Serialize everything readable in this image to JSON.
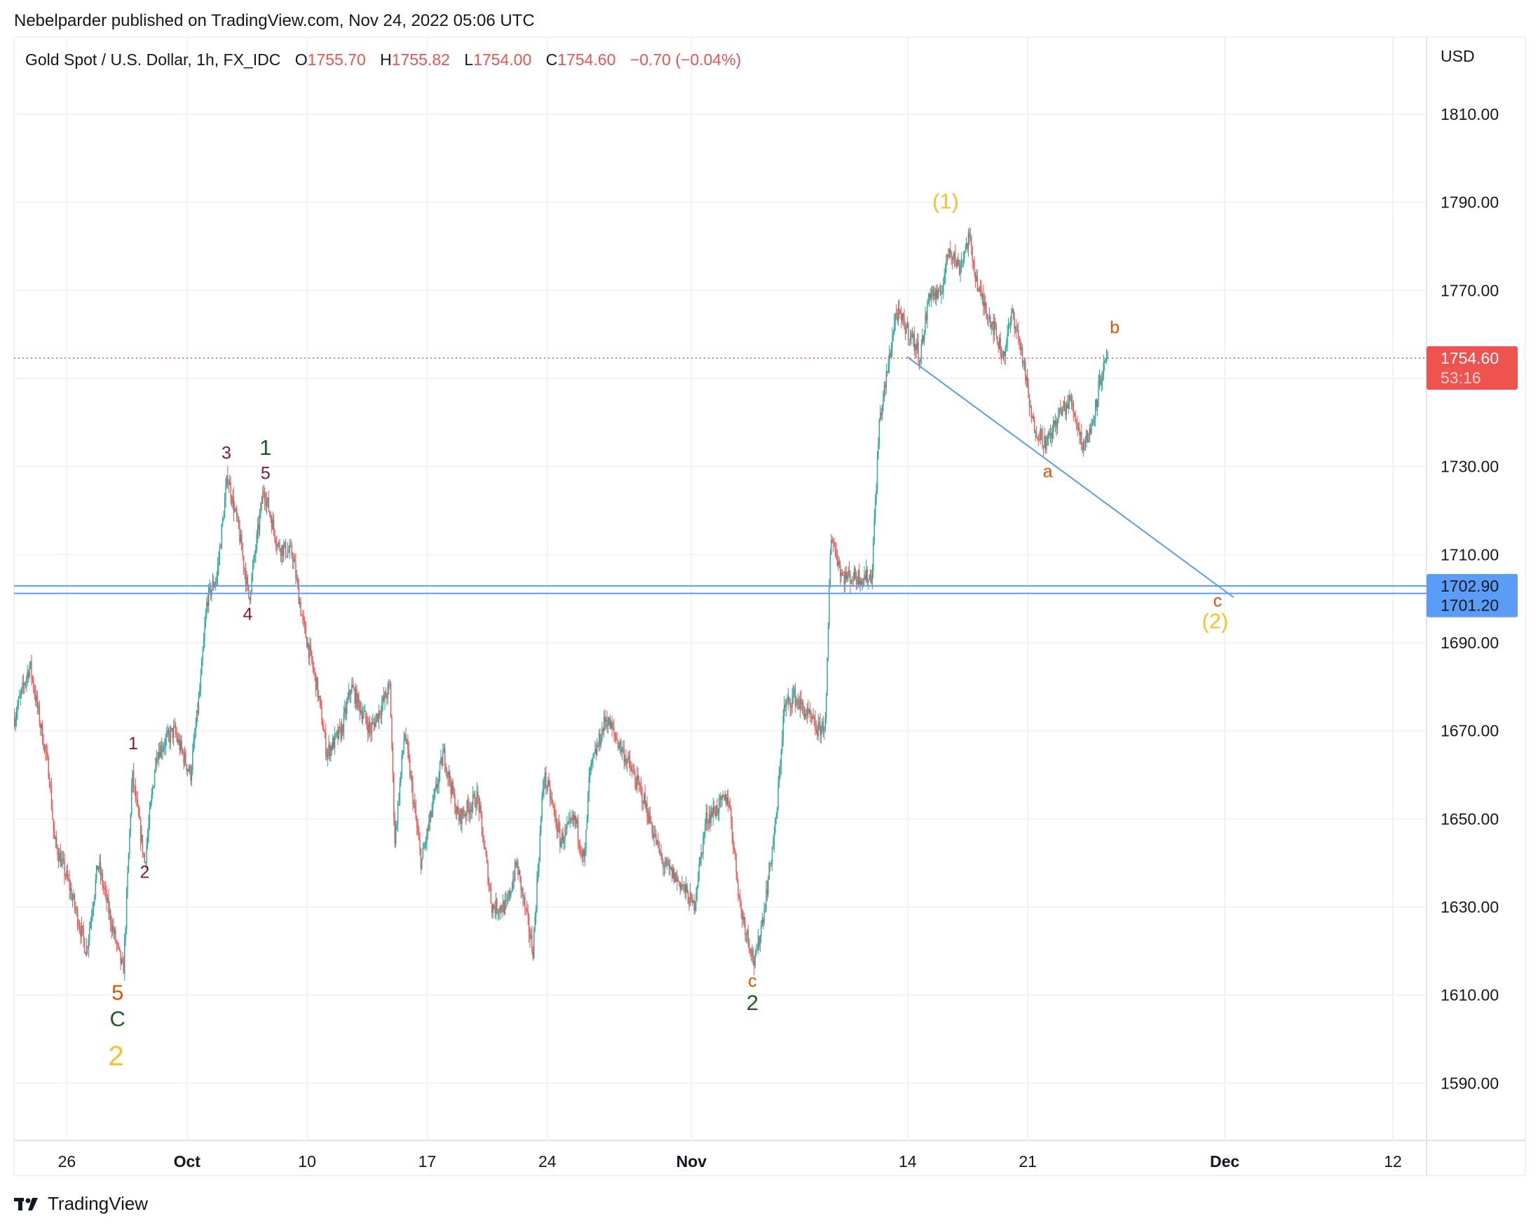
{
  "publish_line": "Nebelparder published on TradingView.com, Nov 24, 2022 05:06 UTC",
  "legend": {
    "symbol": "Gold Spot / U.S. Dollar, 1h, FX_IDC",
    "o_label": "O",
    "o": "1755.70",
    "h_label": "H",
    "h": "1755.82",
    "l_label": "L",
    "l": "1754.00",
    "c_label": "C",
    "c": "1754.60",
    "change": "−0.70 (−0.04%)"
  },
  "footer": {
    "brand": "TradingView",
    "logo_icon": "tradingview-logo-icon"
  },
  "colors": {
    "up": "#26a69a",
    "down": "#ef5350",
    "line": "#5b9cf6",
    "grid": "#f0f3fa"
  },
  "chart_data": {
    "type": "candlestick",
    "currency_label": "USD",
    "x_unit": "trading days since Sep 26 2022",
    "xlim": [
      -2.2,
      56.6
    ],
    "ylim": [
      1577,
      1827.5
    ],
    "y_ticks": [
      "1810.00",
      "1790.00",
      "1770.00",
      "1730.00",
      "1710.00",
      "1690.00",
      "1670.00",
      "1650.00",
      "1630.00",
      "1610.00",
      "1590.00"
    ],
    "x_ticks": [
      {
        "t": 0,
        "label": "26"
      },
      {
        "t": 5,
        "label": "Oct"
      },
      {
        "t": 10,
        "label": "10"
      },
      {
        "t": 15,
        "label": "17"
      },
      {
        "t": 20,
        "label": "24"
      },
      {
        "t": 26,
        "label": "Nov"
      },
      {
        "t": 35,
        "label": "14"
      },
      {
        "t": 40,
        "label": "21"
      },
      {
        "t": 48.2,
        "label": "Dec"
      },
      {
        "t": 55.2,
        "label": "12"
      }
    ],
    "price_path": [
      [
        -2.18,
        1673
      ],
      [
        -1.54,
        1685
      ],
      [
        -0.73,
        1660
      ],
      [
        -0.52,
        1645
      ],
      [
        0.09,
        1635
      ],
      [
        0.81,
        1620
      ],
      [
        1.3,
        1640
      ],
      [
        1.91,
        1625
      ],
      [
        2.35,
        1615
      ],
      [
        2.72,
        1660
      ],
      [
        3.24,
        1640
      ],
      [
        3.73,
        1665
      ],
      [
        4.46,
        1670
      ],
      [
        5.15,
        1660
      ],
      [
        5.55,
        1680
      ],
      [
        5.84,
        1700
      ],
      [
        6.24,
        1705
      ],
      [
        6.69,
        1728
      ],
      [
        7.17,
        1715
      ],
      [
        7.58,
        1700
      ],
      [
        8.19,
        1725
      ],
      [
        8.79,
        1712
      ],
      [
        9.4,
        1710
      ],
      [
        9.81,
        1695
      ],
      [
        10.41,
        1680
      ],
      [
        10.82,
        1665
      ],
      [
        11.43,
        1670
      ],
      [
        11.83,
        1680
      ],
      [
        12.64,
        1670
      ],
      [
        13.45,
        1680
      ],
      [
        13.65,
        1645
      ],
      [
        14.06,
        1670
      ],
      [
        14.75,
        1640
      ],
      [
        15.68,
        1665
      ],
      [
        16.29,
        1650
      ],
      [
        17.1,
        1655
      ],
      [
        17.7,
        1630
      ],
      [
        18.31,
        1630
      ],
      [
        18.72,
        1640
      ],
      [
        19.4,
        1620
      ],
      [
        19.85,
        1660
      ],
      [
        20.13,
        1655
      ],
      [
        20.54,
        1645
      ],
      [
        21.15,
        1650
      ],
      [
        21.55,
        1640
      ],
      [
        21.75,
        1660
      ],
      [
        22.44,
        1673
      ],
      [
        23.17,
        1665
      ],
      [
        23.98,
        1655
      ],
      [
        24.79,
        1640
      ],
      [
        25.6,
        1635
      ],
      [
        26.09,
        1630
      ],
      [
        26.61,
        1650
      ],
      [
        27.54,
        1655
      ],
      [
        28.03,
        1630
      ],
      [
        28.64,
        1617
      ],
      [
        29.04,
        1630
      ],
      [
        29.53,
        1650
      ],
      [
        29.85,
        1675
      ],
      [
        30.26,
        1678
      ],
      [
        31.27,
        1670
      ],
      [
        31.59,
        1672
      ],
      [
        31.8,
        1715
      ],
      [
        32.28,
        1705
      ],
      [
        32.89,
        1705
      ],
      [
        33.5,
        1705
      ],
      [
        33.82,
        1740
      ],
      [
        34.11,
        1750
      ],
      [
        34.51,
        1765
      ],
      [
        35.12,
        1760
      ],
      [
        35.52,
        1755
      ],
      [
        35.93,
        1770
      ],
      [
        36.33,
        1768
      ],
      [
        36.74,
        1780
      ],
      [
        37.14,
        1775
      ],
      [
        37.55,
        1782
      ],
      [
        37.95,
        1770
      ],
      [
        38.56,
        1762
      ],
      [
        38.97,
        1755
      ],
      [
        39.37,
        1765
      ],
      [
        39.78,
        1755
      ],
      [
        40.18,
        1740
      ],
      [
        40.79,
        1735
      ],
      [
        41.31,
        1742
      ],
      [
        41.8,
        1745
      ],
      [
        42.29,
        1735
      ],
      [
        42.61,
        1738
      ],
      [
        43.02,
        1750
      ],
      [
        43.34,
        1754.6
      ]
    ],
    "last_price": {
      "value": 1754.6,
      "label": "1754.60",
      "countdown": "53:16"
    },
    "horizontal_lines": [
      {
        "value": 1702.9,
        "label": "1702.90"
      },
      {
        "value": 1701.2,
        "label": "1701.20"
      }
    ],
    "trend_line": [
      [
        34.98,
        1754.9
      ],
      [
        48.57,
        1700.3
      ]
    ],
    "annotations": [
      {
        "t": 2.76,
        "p": 1667.2,
        "text": "1",
        "color": "#8b1a2b",
        "size": "s"
      },
      {
        "t": 3.24,
        "p": 1638,
        "text": "2",
        "color": "#8b1a2b",
        "size": "s"
      },
      {
        "t": 6.64,
        "p": 1733.2,
        "text": "3",
        "color": "#8b1a2b",
        "size": "s"
      },
      {
        "t": 7.53,
        "p": 1696.6,
        "text": "4",
        "color": "#8b1a2b",
        "size": "s"
      },
      {
        "t": 8.27,
        "p": 1728.6,
        "text": "5",
        "color": "#8b1a2b",
        "size": "s"
      },
      {
        "t": 8.27,
        "p": 1734.4,
        "text": "1",
        "color": "#1b5e20",
        "size": "m"
      },
      {
        "t": 2.11,
        "p": 1610.7,
        "text": "5",
        "color": "#e65100",
        "size": "m"
      },
      {
        "t": 2.11,
        "p": 1604.7,
        "text": "C",
        "color": "#1b5e20",
        "size": "m"
      },
      {
        "t": 2.05,
        "p": 1596.3,
        "text": "2",
        "color": "#fbc02d",
        "size": "l"
      },
      {
        "t": 28.54,
        "p": 1613.3,
        "text": "c",
        "color": "#e65100",
        "size": "s"
      },
      {
        "t": 28.54,
        "p": 1608.4,
        "text": "2",
        "color": "#1b5e20",
        "size": "m"
      },
      {
        "t": 36.58,
        "p": 1790.4,
        "text": "(1)",
        "color": "#fbc02d",
        "size": "m"
      },
      {
        "t": 43.62,
        "p": 1761.7,
        "text": "b",
        "color": "#e65100",
        "size": "s"
      },
      {
        "t": 40.83,
        "p": 1729.0,
        "text": "a",
        "color": "#e65100",
        "size": "s"
      },
      {
        "t": 47.9,
        "p": 1699.6,
        "text": "c",
        "color": "#e65100",
        "size": "s"
      },
      {
        "t": 47.8,
        "p": 1695.0,
        "text": "(2)",
        "color": "#fbc02d",
        "size": "m"
      }
    ]
  }
}
